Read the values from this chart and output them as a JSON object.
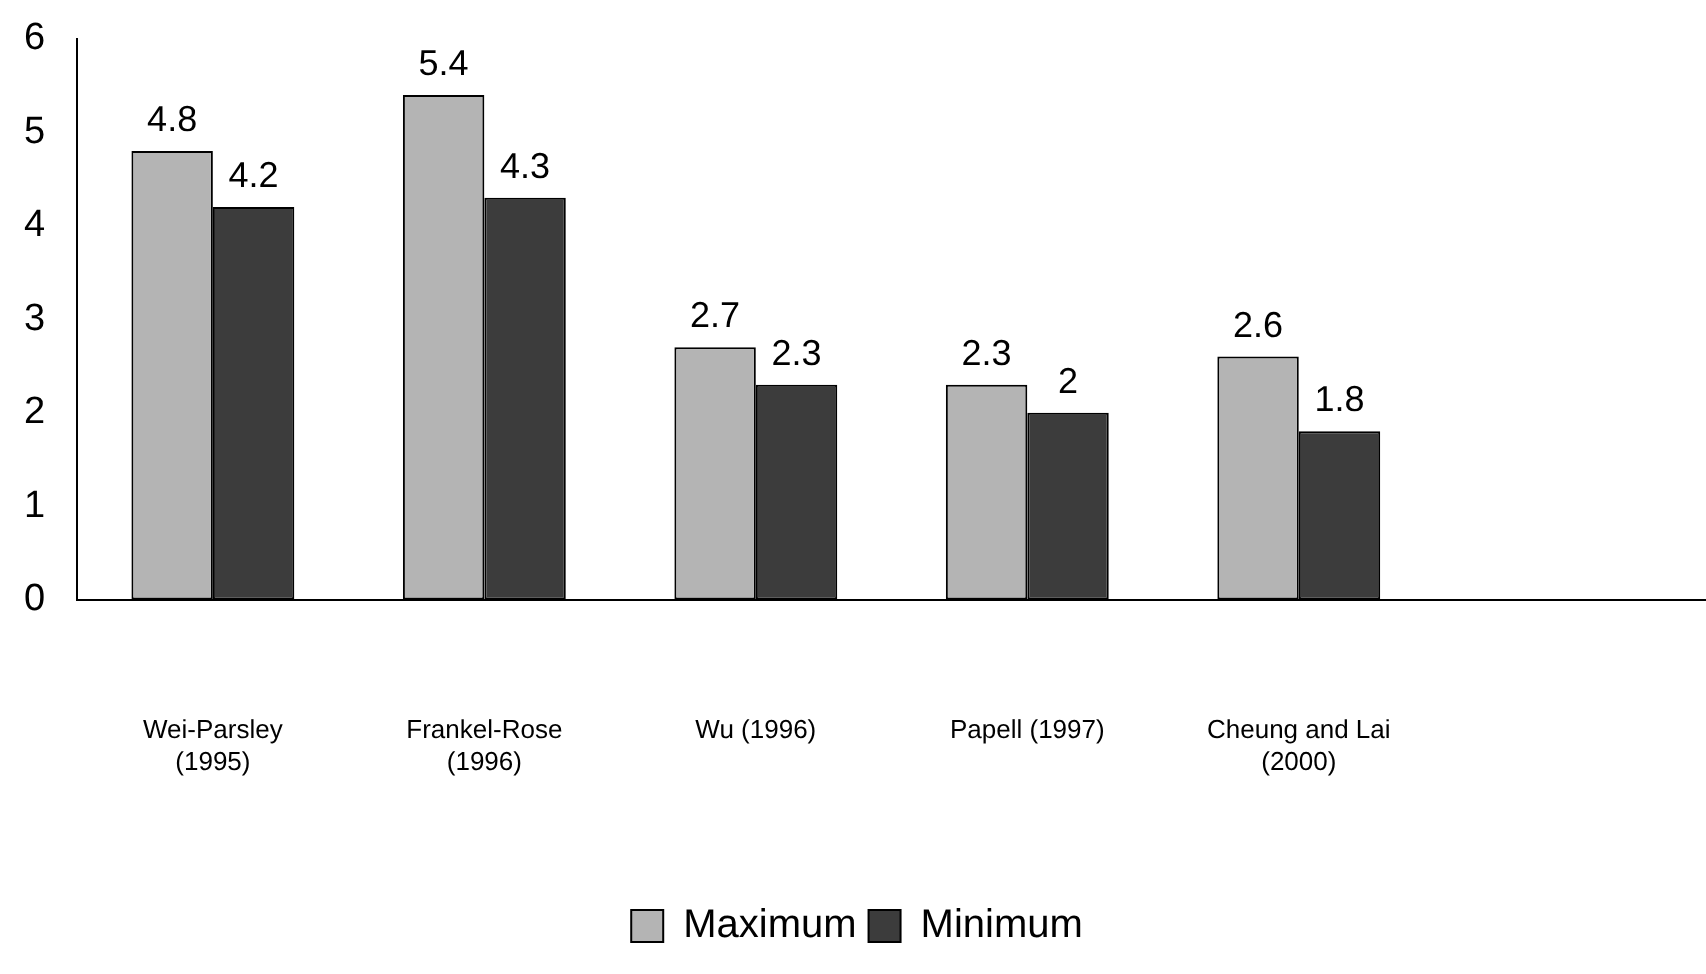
{
  "chart_data": {
    "type": "bar",
    "categories": [
      "Wei-Parsley\n(1995)",
      "Frankel-Rose\n(1996)",
      "Wu (1996)",
      "Papell (1997)",
      "Cheung and Lai\n(2000)",
      null
    ],
    "series": [
      {
        "name": "Maximum",
        "color": "#b4b4b4",
        "values": [
          4.8,
          5.4,
          2.7,
          2.3,
          2.6,
          null
        ]
      },
      {
        "name": "Minimum",
        "color": "#3c3c3c",
        "values": [
          4.2,
          4.3,
          2.3,
          2,
          1.8,
          null
        ]
      }
    ],
    "ylim": [
      0,
      6
    ],
    "yticks": [
      0,
      1,
      2,
      3,
      4,
      5,
      6
    ],
    "grid": false,
    "legend": "bottom",
    "data_labels": true
  }
}
